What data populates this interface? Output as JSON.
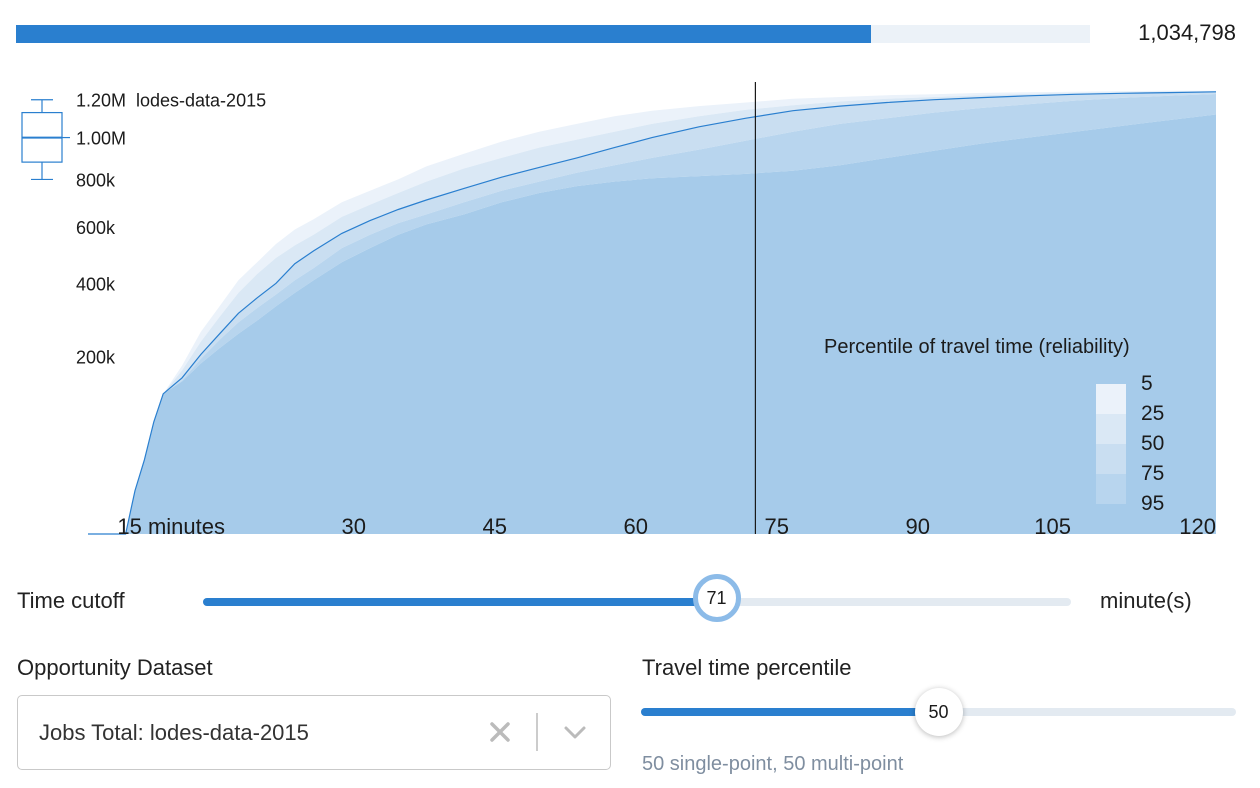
{
  "total": {
    "value": 1034798,
    "display": "1,034,798",
    "max_value": 1300000
  },
  "colors": {
    "accent": "#2a7fcf",
    "band_5": "#ebf2fa",
    "band_25": "#dae8f5",
    "band_50": "#c9def1",
    "band_75": "#b8d5ee",
    "band_95": "#a6cbea",
    "line": "#2a7fcf"
  },
  "chart_data": {
    "type": "area",
    "xlim": [
      0,
      120
    ],
    "x_ticks": [
      {
        "value": 15,
        "label": "15 minutes"
      },
      {
        "value": 30,
        "label": "30"
      },
      {
        "value": 45,
        "label": "45"
      },
      {
        "value": 60,
        "label": "60"
      },
      {
        "value": 75,
        "label": "75"
      },
      {
        "value": 90,
        "label": "90"
      },
      {
        "value": 105,
        "label": "105"
      },
      {
        "value": 120,
        "label": "120"
      }
    ],
    "ylim": [
      0,
      1300000
    ],
    "scale": "sqrt",
    "y_ticks": [
      {
        "value": 200000,
        "label": "200k"
      },
      {
        "value": 400000,
        "label": "400k"
      },
      {
        "value": 600000,
        "label": "600k"
      },
      {
        "value": 800000,
        "label": "800k"
      },
      {
        "value": 1000000,
        "label": "1.00M"
      },
      {
        "value": 1200000,
        "label": "1.20M"
      }
    ],
    "dataset_label": "lodes-data-2015",
    "cutoff": 71,
    "legend": {
      "title": "Percentile of travel time (reliability)",
      "items": [
        "5",
        "25",
        "50",
        "75",
        "95"
      ],
      "placement": "bottom-right"
    },
    "boxplot": {
      "min": 800000,
      "q1": 880000,
      "median": 1000000,
      "q3": 1130000,
      "max": 1200000
    },
    "x": [
      0,
      1,
      2,
      3,
      4,
      5,
      6,
      7,
      8,
      10,
      12,
      14,
      16,
      18,
      20,
      22,
      24,
      27,
      30,
      33,
      36,
      40,
      44,
      48,
      52,
      56,
      60,
      65,
      70,
      75,
      80,
      85,
      90,
      95,
      100,
      105,
      110,
      115,
      120
    ],
    "series": [
      {
        "name": "5",
        "values": [
          0,
          0,
          0,
          0,
          0,
          12000,
          35000,
          80000,
          125000,
          180000,
          260000,
          330000,
          410000,
          470000,
          535000,
          590000,
          630000,
          700000,
          750000,
          800000,
          860000,
          920000,
          980000,
          1030000,
          1070000,
          1110000,
          1140000,
          1165000,
          1185000,
          1205000,
          1215000,
          1225000,
          1230000,
          1238000,
          1242000,
          1245000,
          1248000,
          1250000,
          1250000
        ]
      },
      {
        "name": "25",
        "values": [
          0,
          0,
          0,
          0,
          0,
          12000,
          35000,
          80000,
          125000,
          170000,
          235000,
          300000,
          370000,
          430000,
          485000,
          530000,
          570000,
          640000,
          690000,
          740000,
          790000,
          850000,
          900000,
          950000,
          990000,
          1030000,
          1070000,
          1110000,
          1145000,
          1170000,
          1190000,
          1205000,
          1215000,
          1225000,
          1232000,
          1238000,
          1242000,
          1246000,
          1248000
        ]
      },
      {
        "name": "50",
        "values": [
          0,
          0,
          0,
          0,
          0,
          12000,
          35000,
          80000,
          125000,
          155000,
          205000,
          255000,
          310000,
          355000,
          400000,
          465000,
          510000,
          575000,
          625000,
          670000,
          710000,
          760000,
          810000,
          855000,
          900000,
          950000,
          1000000,
          1055000,
          1100000,
          1140000,
          1165000,
          1185000,
          1200000,
          1212000,
          1222000,
          1230000,
          1236000,
          1240000,
          1244000
        ]
      },
      {
        "name": "75",
        "values": [
          0,
          0,
          0,
          0,
          0,
          12000,
          35000,
          80000,
          125000,
          150000,
          195000,
          240000,
          285000,
          325000,
          365000,
          410000,
          450000,
          520000,
          570000,
          615000,
          650000,
          700000,
          750000,
          790000,
          830000,
          865000,
          900000,
          940000,
          985000,
          1030000,
          1070000,
          1100000,
          1130000,
          1155000,
          1175000,
          1195000,
          1210000,
          1222000,
          1232000
        ]
      },
      {
        "name": "95",
        "values": [
          0,
          0,
          0,
          0,
          0,
          12000,
          35000,
          80000,
          125000,
          148000,
          185000,
          220000,
          255000,
          290000,
          330000,
          370000,
          410000,
          470000,
          520000,
          570000,
          610000,
          650000,
          700000,
          740000,
          770000,
          790000,
          805000,
          815000,
          825000,
          840000,
          865000,
          900000,
          935000,
          970000,
          1000000,
          1030000,
          1060000,
          1090000,
          1120000
        ]
      }
    ]
  },
  "time_cutoff": {
    "label": "Time cutoff",
    "value": 71,
    "value_display": "71",
    "unit": "minute(s)",
    "min": 0,
    "max": 120
  },
  "opportunity": {
    "label": "Opportunity Dataset",
    "selected": "Jobs Total: lodes-data-2015"
  },
  "percentile": {
    "label": "Travel time percentile",
    "value": 50,
    "value_display": "50",
    "min": 5,
    "max": 95,
    "help": "50 single-point, 50 multi-point"
  }
}
